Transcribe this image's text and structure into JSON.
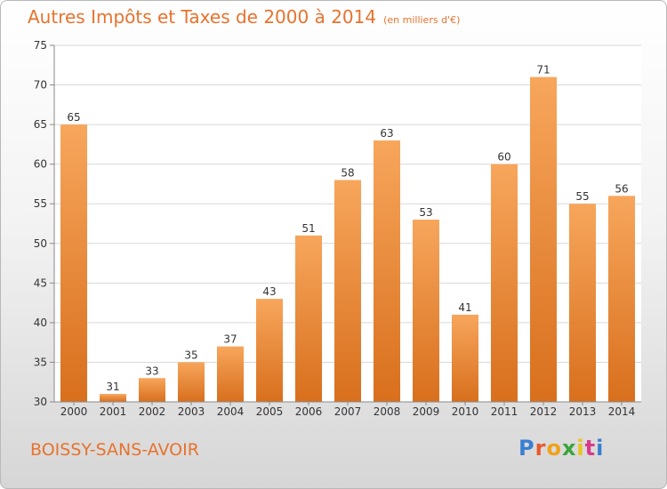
{
  "title": "Autres Impôts et Taxes de 2000 à 2014",
  "unit_note": "(en milliers d'€)",
  "commune": "BOISSY-SANS-AVOIR",
  "logo": {
    "text": "Proxiti",
    "letter_colors": [
      "#3a7fd0",
      "#e85a2b",
      "#f0a21a",
      "#3aa53a",
      "#e8c51a",
      "#d93a8a",
      "#3a7fd0"
    ]
  },
  "colors": {
    "accent": "#e8722d",
    "bar_light": "#f7a65c",
    "bar_dark": "#d86f1d",
    "grid": "#d8d8d8",
    "axis": "#888888"
  },
  "chart_data": {
    "type": "bar",
    "title": "Autres Impôts et Taxes de 2000 à 2014",
    "subtitle": "(en milliers d'€)",
    "xlabel": "",
    "ylabel": "",
    "categories": [
      "2000",
      "2001",
      "2002",
      "2003",
      "2004",
      "2005",
      "2006",
      "2007",
      "2008",
      "2009",
      "2010",
      "2011",
      "2012",
      "2013",
      "2014"
    ],
    "values": [
      65,
      31,
      33,
      35,
      37,
      43,
      51,
      58,
      63,
      53,
      41,
      60,
      71,
      55,
      56
    ],
    "ylim": [
      30,
      75
    ],
    "yticks": [
      30,
      35,
      40,
      45,
      50,
      55,
      60,
      65,
      70,
      75
    ],
    "grid": true,
    "legend": "none"
  }
}
